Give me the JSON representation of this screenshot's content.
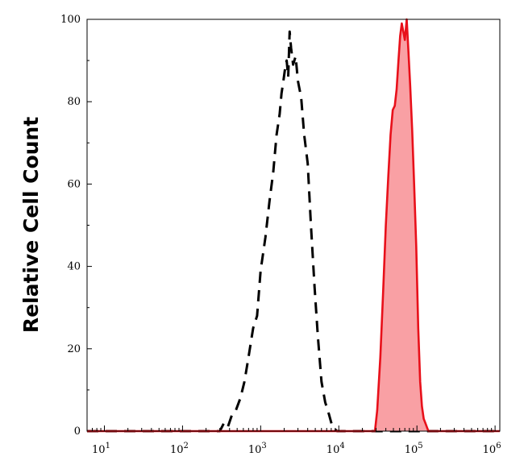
{
  "chart_data": {
    "type": "area",
    "title": "",
    "xlabel": "",
    "ylabel": "Relative Cell Count",
    "xscale": "log",
    "xlim": [
      6,
      1150000
    ],
    "ylim": [
      0,
      100
    ],
    "grid": false,
    "y_ticks": [
      {
        "value": 0,
        "label": "0"
      },
      {
        "value": 20,
        "label": "20"
      },
      {
        "value": 40,
        "label": "40"
      },
      {
        "value": 60,
        "label": "60"
      },
      {
        "value": 80,
        "label": "80"
      },
      {
        "value": 100,
        "label": "100"
      }
    ],
    "x_ticks": [
      {
        "value": 10,
        "base": "10",
        "exp": "1"
      },
      {
        "value": 100,
        "base": "10",
        "exp": "2"
      },
      {
        "value": 1000,
        "base": "10",
        "exp": "3"
      },
      {
        "value": 10000,
        "base": "10",
        "exp": "4"
      },
      {
        "value": 100000,
        "base": "10",
        "exp": "5"
      },
      {
        "value": 1000000,
        "base": "10",
        "exp": "6"
      }
    ],
    "series": [
      {
        "style": "dashed",
        "color": "#000000",
        "fill": "none",
        "x": [
          6,
          300,
          340,
          380,
          430,
          480,
          550,
          620,
          700,
          800,
          900,
          1000,
          1150,
          1300,
          1450,
          1600,
          1750,
          1850,
          1950,
          2050,
          2150,
          2250,
          2350,
          2450,
          2600,
          2800,
          3000,
          3300,
          3600,
          4000,
          4400,
          4900,
          5400,
          6000,
          6700,
          7500,
          8300,
          9500,
          1150000
        ],
        "y": [
          0,
          0,
          2,
          1,
          4,
          5,
          8,
          12,
          18,
          25,
          28,
          39,
          47,
          56,
          63,
          72,
          77,
          82,
          85,
          88,
          90,
          86,
          97,
          93,
          89,
          91,
          85,
          81,
          72,
          65,
          50,
          35,
          23,
          12,
          7,
          4,
          1,
          0,
          0
        ]
      },
      {
        "style": "solid",
        "color": "#e8101a",
        "fill": "#f9a0a4",
        "x": [
          6,
          29000,
          31000,
          34000,
          37000,
          40000,
          43000,
          46000,
          49000,
          52000,
          55000,
          58000,
          61000,
          64000,
          67000,
          70000,
          74000,
          78000,
          82000,
          87000,
          92000,
          98000,
          104000,
          110000,
          116000,
          122000,
          128000,
          134000,
          140000,
          150000,
          1150000
        ],
        "y": [
          0,
          0,
          5,
          18,
          34,
          50,
          62,
          72,
          78,
          79,
          83,
          90,
          96,
          99,
          97,
          95,
          100,
          92,
          84,
          73,
          60,
          45,
          25,
          12,
          6,
          3,
          2,
          1,
          0,
          0,
          0
        ]
      }
    ]
  }
}
